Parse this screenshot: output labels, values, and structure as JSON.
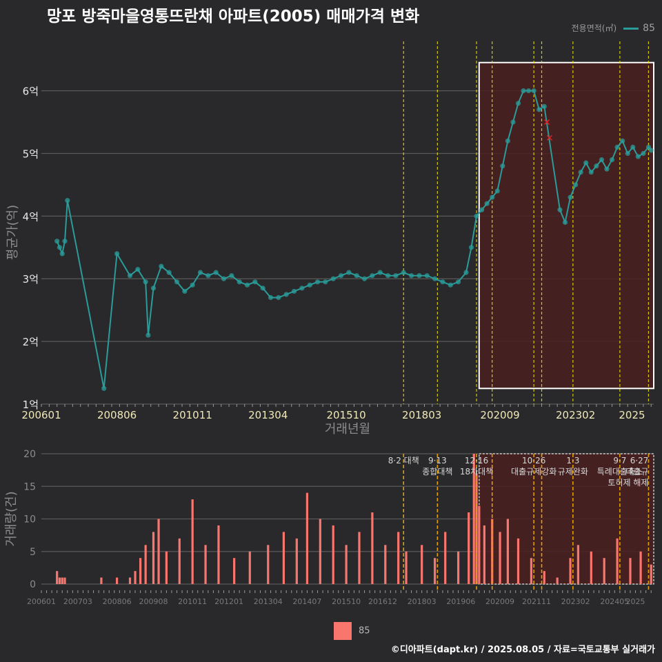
{
  "title": "망포 방죽마을영통뜨란채 아파트(2005) 매매가격 변화",
  "caption": "©디아파트(dapt.kr) / 2025.08.05 / 자료=국토교통부 실거래가",
  "legend_top": {
    "title": "전용면적(㎡)",
    "entry": "85"
  },
  "legend_bottom": {
    "entry": "85"
  },
  "colors": {
    "background": "#29292b",
    "price": "#2a9c9a",
    "volume": "#f8766d",
    "policy_line": "#f2e600",
    "policy_line_bottom": "#e0a000",
    "highlight_fill": "#4a1e1e",
    "highlight_border": "#ffffff"
  },
  "chart_data": [
    {
      "type": "line",
      "name": "price",
      "xlabel": "거래년월",
      "ylabel": "평균가(억)",
      "y_unit": "억",
      "xlim": [
        "2006-01",
        "2025-08"
      ],
      "ylim": [
        1,
        6.7
      ],
      "y_ticks": [
        1,
        2,
        3,
        4,
        5,
        6
      ],
      "x_ticks": [
        "200601",
        "200806",
        "201011",
        "201304",
        "201510",
        "201803",
        "202009",
        "202302",
        "2025"
      ],
      "policy_dates": [
        "2017-08",
        "2018-09",
        "2019-12",
        "2020-06",
        "2021-10",
        "2022-01",
        "2023-01",
        "2024-07",
        "2025-06"
      ],
      "highlight": {
        "x0": "2020-01",
        "x1": "2025-08",
        "y0": 1.25,
        "y1": 6.45
      },
      "outliers": [
        {
          "x": "2022-03",
          "y": 5.5
        },
        {
          "x": "2022-04",
          "y": 5.25
        }
      ],
      "series": [
        {
          "name": "85",
          "points": [
            [
              "2006-07",
              3.6
            ],
            [
              "2006-08",
              3.5
            ],
            [
              "2006-09",
              3.4
            ],
            [
              "2006-10",
              3.6
            ],
            [
              "2006-11",
              4.25
            ],
            [
              "2008-01",
              1.25
            ],
            [
              "2008-06",
              3.4
            ],
            [
              "2008-11",
              3.05
            ],
            [
              "2009-02",
              3.15
            ],
            [
              "2009-05",
              2.95
            ],
            [
              "2009-06",
              2.1
            ],
            [
              "2009-08",
              2.85
            ],
            [
              "2009-11",
              3.2
            ],
            [
              "2010-02",
              3.1
            ],
            [
              "2010-05",
              2.95
            ],
            [
              "2010-08",
              2.8
            ],
            [
              "2010-11",
              2.9
            ],
            [
              "2011-02",
              3.1
            ],
            [
              "2011-05",
              3.05
            ],
            [
              "2011-08",
              3.1
            ],
            [
              "2011-11",
              3.0
            ],
            [
              "2012-02",
              3.05
            ],
            [
              "2012-05",
              2.95
            ],
            [
              "2012-08",
              2.9
            ],
            [
              "2012-11",
              2.95
            ],
            [
              "2013-02",
              2.85
            ],
            [
              "2013-05",
              2.7
            ],
            [
              "2013-08",
              2.7
            ],
            [
              "2013-11",
              2.75
            ],
            [
              "2014-02",
              2.8
            ],
            [
              "2014-05",
              2.85
            ],
            [
              "2014-08",
              2.9
            ],
            [
              "2014-11",
              2.95
            ],
            [
              "2015-02",
              2.95
            ],
            [
              "2015-05",
              3.0
            ],
            [
              "2015-08",
              3.05
            ],
            [
              "2015-11",
              3.1
            ],
            [
              "2016-02",
              3.05
            ],
            [
              "2016-05",
              3.0
            ],
            [
              "2016-08",
              3.05
            ],
            [
              "2016-11",
              3.1
            ],
            [
              "2017-02",
              3.05
            ],
            [
              "2017-05",
              3.05
            ],
            [
              "2017-08",
              3.1
            ],
            [
              "2017-11",
              3.05
            ],
            [
              "2018-02",
              3.05
            ],
            [
              "2018-05",
              3.05
            ],
            [
              "2018-08",
              3.0
            ],
            [
              "2018-11",
              2.95
            ],
            [
              "2019-02",
              2.9
            ],
            [
              "2019-05",
              2.95
            ],
            [
              "2019-08",
              3.1
            ],
            [
              "2019-10",
              3.5
            ],
            [
              "2019-12",
              4.0
            ],
            [
              "2020-02",
              4.1
            ],
            [
              "2020-04",
              4.2
            ],
            [
              "2020-06",
              4.3
            ],
            [
              "2020-08",
              4.4
            ],
            [
              "2020-10",
              4.8
            ],
            [
              "2020-12",
              5.2
            ],
            [
              "2021-02",
              5.5
            ],
            [
              "2021-04",
              5.8
            ],
            [
              "2021-06",
              6.0
            ],
            [
              "2021-08",
              6.0
            ],
            [
              "2021-10",
              6.0
            ],
            [
              "2021-12",
              5.7
            ],
            [
              "2022-02",
              5.75
            ],
            [
              "2022-08",
              4.1
            ],
            [
              "2022-10",
              3.9
            ],
            [
              "2022-12",
              4.3
            ],
            [
              "2023-02",
              4.5
            ],
            [
              "2023-04",
              4.7
            ],
            [
              "2023-06",
              4.85
            ],
            [
              "2023-08",
              4.7
            ],
            [
              "2023-10",
              4.8
            ],
            [
              "2023-12",
              4.9
            ],
            [
              "2024-02",
              4.75
            ],
            [
              "2024-04",
              4.9
            ],
            [
              "2024-06",
              5.1
            ],
            [
              "2024-08",
              5.2
            ],
            [
              "2024-10",
              5.0
            ],
            [
              "2024-12",
              5.1
            ],
            [
              "2025-02",
              4.95
            ],
            [
              "2025-04",
              5.0
            ],
            [
              "2025-06",
              5.1
            ],
            [
              "2025-07",
              5.05
            ]
          ]
        }
      ]
    },
    {
      "type": "bar",
      "name": "volume",
      "ylabel": "거래량(건)",
      "ylim": [
        0,
        20
      ],
      "y_ticks": [
        0,
        5,
        10,
        15,
        20
      ],
      "x_ticks": [
        "200601",
        "200703",
        "200806",
        "200908",
        "201011",
        "201201",
        "201304",
        "201407",
        "201510",
        "201612",
        "201803",
        "201906",
        "202009",
        "202111",
        "202302",
        "202405",
        "2025"
      ],
      "highlight": {
        "x0": "2020-01",
        "x1": "2025-08",
        "y0": 0,
        "y1": 20
      },
      "annotations": [
        {
          "x": "2017-08",
          "lines": [
            "8·2 대책"
          ]
        },
        {
          "x": "2018-09",
          "lines": [
            "9·13",
            "종합대책"
          ]
        },
        {
          "x": "2019-12",
          "lines": [
            "12·16",
            "18차대책"
          ]
        },
        {
          "x": "2021-10",
          "lines": [
            "10·26",
            "대출규제강화"
          ]
        },
        {
          "x": "2023-01",
          "lines": [
            "1·3",
            "규제완화"
          ]
        },
        {
          "x": "2024-07",
          "lines": [
            "9·7",
            "특례대출축소"
          ]
        },
        {
          "x": "2025-06",
          "lines": [
            "6·27",
            "대출규",
            "토허제 해제"
          ]
        }
      ],
      "series": [
        {
          "name": "85",
          "values": [
            [
              "2006-07",
              2
            ],
            [
              "2006-08",
              1
            ],
            [
              "2006-09",
              1
            ],
            [
              "2006-10",
              1
            ],
            [
              "2007-12",
              1
            ],
            [
              "2008-06",
              1
            ],
            [
              "2008-11",
              1
            ],
            [
              "2009-01",
              2
            ],
            [
              "2009-03",
              4
            ],
            [
              "2009-05",
              6
            ],
            [
              "2009-08",
              8
            ],
            [
              "2009-10",
              10
            ],
            [
              "2010-01",
              5
            ],
            [
              "2010-06",
              7
            ],
            [
              "2010-11",
              13
            ],
            [
              "2011-04",
              6
            ],
            [
              "2011-09",
              9
            ],
            [
              "2012-03",
              4
            ],
            [
              "2012-09",
              5
            ],
            [
              "2013-04",
              6
            ],
            [
              "2013-10",
              8
            ],
            [
              "2014-03",
              7
            ],
            [
              "2014-07",
              14
            ],
            [
              "2014-12",
              10
            ],
            [
              "2015-05",
              9
            ],
            [
              "2015-10",
              6
            ],
            [
              "2016-03",
              8
            ],
            [
              "2016-08",
              11
            ],
            [
              "2017-01",
              6
            ],
            [
              "2017-06",
              8
            ],
            [
              "2017-09",
              5
            ],
            [
              "2018-03",
              6
            ],
            [
              "2018-08",
              4
            ],
            [
              "2018-12",
              8
            ],
            [
              "2019-05",
              5
            ],
            [
              "2019-09",
              11
            ],
            [
              "2019-11",
              20
            ],
            [
              "2019-12",
              17
            ],
            [
              "2020-01",
              12
            ],
            [
              "2020-03",
              9
            ],
            [
              "2020-06",
              10
            ],
            [
              "2020-09",
              8
            ],
            [
              "2020-12",
              10
            ],
            [
              "2021-04",
              7
            ],
            [
              "2021-09",
              4
            ],
            [
              "2022-02",
              2
            ],
            [
              "2022-07",
              1
            ],
            [
              "2022-12",
              4
            ],
            [
              "2023-03",
              6
            ],
            [
              "2023-08",
              5
            ],
            [
              "2024-01",
              4
            ],
            [
              "2024-06",
              7
            ],
            [
              "2024-11",
              4
            ],
            [
              "2025-03",
              5
            ],
            [
              "2025-07",
              3
            ]
          ]
        }
      ]
    }
  ]
}
